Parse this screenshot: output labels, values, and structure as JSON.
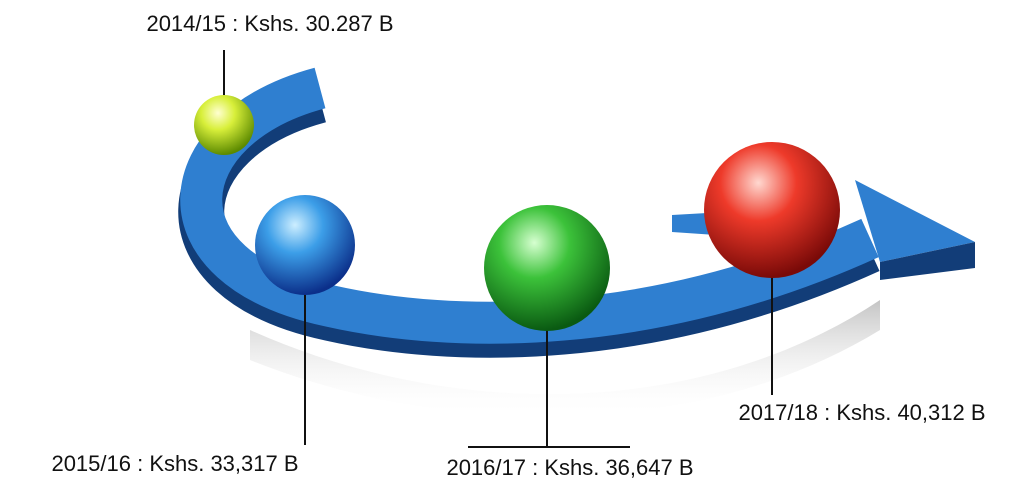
{
  "nodes": [
    {
      "label": "2014/15 : Kshs. 30.287 B"
    },
    {
      "label": "2015/16 :  Kshs. 33,317 B"
    },
    {
      "label": "2016/17 : Kshs. 36,647 B"
    },
    {
      "label": "2017/18 : Kshs. 40,312 B"
    }
  ]
}
